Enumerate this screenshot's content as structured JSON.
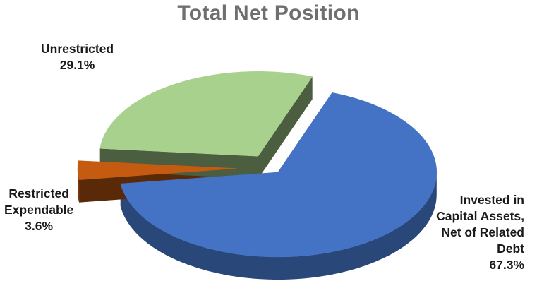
{
  "chart_data": {
    "type": "pie",
    "title": "Total Net Position",
    "style": "3d-exploded",
    "slices": [
      {
        "label": "Invested in Capital Assets, Net of Related Debt",
        "value": 67.3,
        "value_label": "67.3%",
        "color": "#4472c4"
      },
      {
        "label": "Restricted Expendable",
        "value": 3.6,
        "value_label": "3.6%",
        "color": "#c55a11"
      },
      {
        "label": "Unrestricted",
        "value": 29.1,
        "value_label": "29.1%",
        "color": "#a9d18e"
      }
    ]
  },
  "labels": {
    "unrestricted": {
      "lines": [
        "Unrestricted"
      ],
      "value": "29.1%"
    },
    "restricted": {
      "lines": [
        "Restricted",
        "Expendable"
      ],
      "value": "3.6%"
    },
    "invested": {
      "lines": [
        "Invested in",
        "Capital Assets,",
        "Net of Related",
        "Debt"
      ],
      "value": "67.3%"
    }
  }
}
